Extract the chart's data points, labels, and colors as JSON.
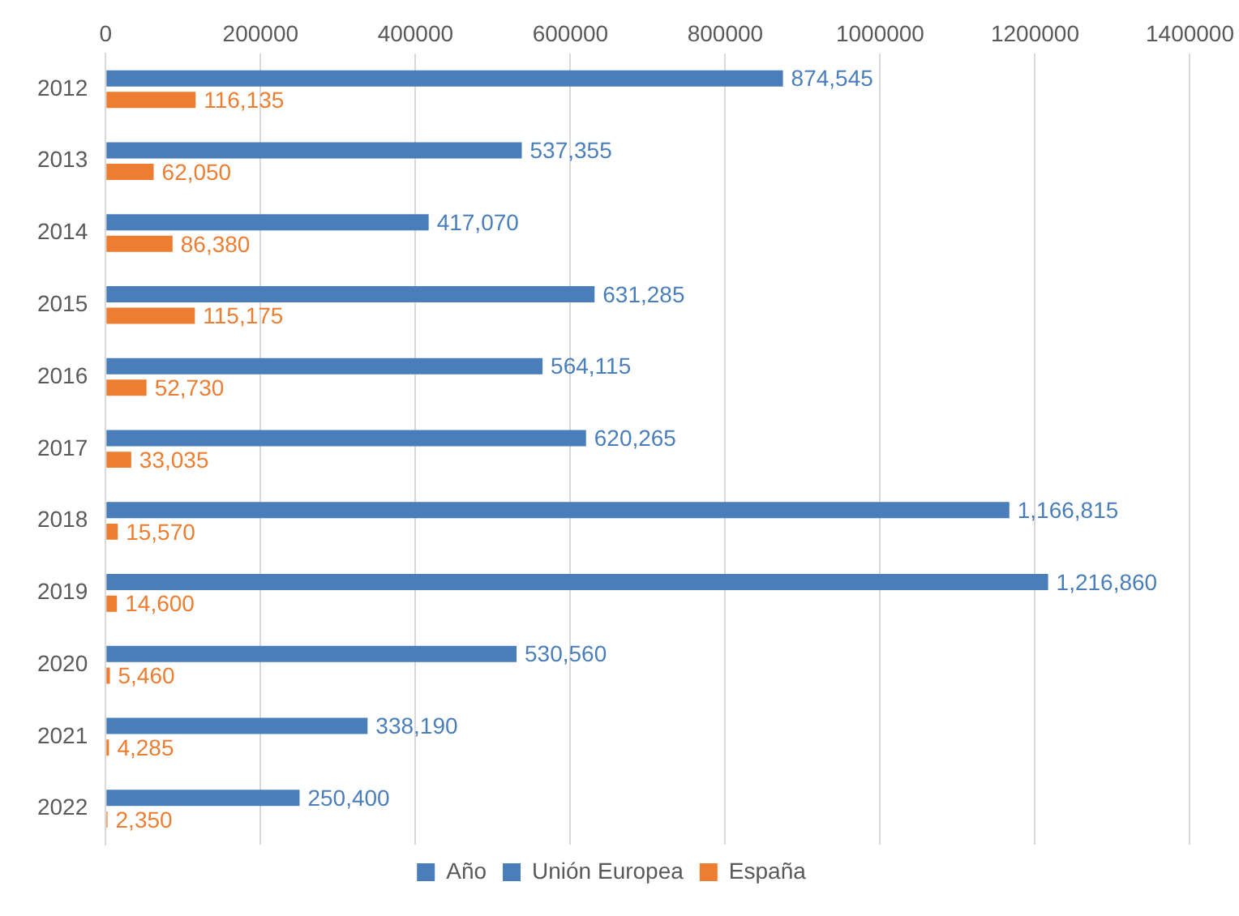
{
  "chart_data": {
    "type": "bar",
    "orientation": "horizontal",
    "categories": [
      "2012",
      "2013",
      "2014",
      "2015",
      "2016",
      "2017",
      "2018",
      "2019",
      "2020",
      "2021",
      "2022"
    ],
    "series": [
      {
        "name": "Año",
        "color": "#4a7ebb",
        "values": [
          null,
          null,
          null,
          null,
          null,
          null,
          null,
          null,
          null,
          null,
          null
        ]
      },
      {
        "name": "Unión Europea",
        "color": "#4a7ebb",
        "values": [
          874545,
          537355,
          417070,
          631285,
          564115,
          620265,
          1166815,
          1216860,
          530560,
          338190,
          250400
        ],
        "value_labels": [
          "874,545",
          "537,355",
          "417,070",
          "631,285",
          "564,115",
          "620,265",
          "1,166,815",
          "1,216,860",
          "530,560",
          "338,190",
          "250,400"
        ]
      },
      {
        "name": "España",
        "color": "#ed7d31",
        "values": [
          116135,
          62050,
          86380,
          115175,
          52730,
          33035,
          15570,
          14600,
          5460,
          4285,
          2350
        ],
        "value_labels": [
          "116,135",
          "62,050",
          "86,380",
          "115,175",
          "52,730",
          "33,035",
          "15,570",
          "14,600",
          "5,460",
          "4,285",
          "2,350"
        ]
      }
    ],
    "xlim": [
      0,
      1400000
    ],
    "xticks": [
      0,
      200000,
      400000,
      600000,
      800000,
      1000000,
      1200000,
      1400000
    ],
    "grid": "x",
    "legend": "bottom"
  }
}
